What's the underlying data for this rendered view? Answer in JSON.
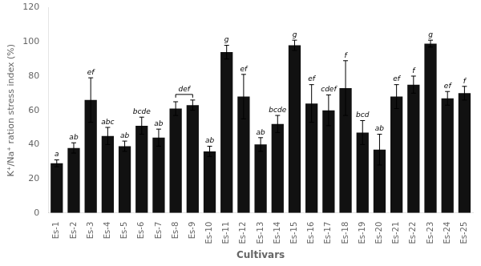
{
  "chart_data": {
    "type": "bar",
    "categories": [
      "Es-1",
      "Es-2",
      "Es-3",
      "Es-4",
      "Es-5",
      "Es-6",
      "Es-7",
      "Es-8",
      "Es-9",
      "Es-10",
      "Es-11",
      "Es-12",
      "Es-13",
      "Es-14",
      "Es-15",
      "Es-16",
      "Es-17",
      "Es-18",
      "Es-19",
      "Es-20",
      "Es-21",
      "Es-22",
      "Es-23",
      "Es-24",
      "Es-25"
    ],
    "values": [
      29,
      38,
      66,
      45,
      39,
      51,
      44,
      61,
      63,
      36,
      94,
      68,
      40,
      52,
      98,
      64,
      60,
      73,
      47,
      37,
      68,
      75,
      99,
      67,
      70
    ],
    "errors": [
      2,
      3,
      13,
      5,
      3,
      5,
      5,
      4,
      3,
      3,
      4,
      13,
      4,
      5,
      3,
      11,
      9,
      16,
      7,
      9,
      7,
      5,
      2,
      4,
      4
    ],
    "sig_labels": [
      "a",
      "ab",
      "ef",
      "abc",
      "ab",
      "bcde",
      "ab",
      null,
      null,
      "ab",
      "g",
      "ef",
      "ab",
      "bcde",
      "g",
      "ef",
      "cdef",
      "f",
      "bcd",
      "ab",
      "ef",
      "f",
      "g",
      "ef",
      "f"
    ],
    "annotations": [
      {
        "text": "def",
        "from": "Es-8",
        "to": "Es-9"
      }
    ],
    "color": "#111111",
    "xlabel": "Cultivars",
    "ylabel": "K⁺/Na⁺ ration stress index (%)",
    "ylim": [
      0,
      120
    ],
    "yticks": [
      0,
      20,
      40,
      60,
      80,
      100,
      120
    ],
    "grid": false
  }
}
